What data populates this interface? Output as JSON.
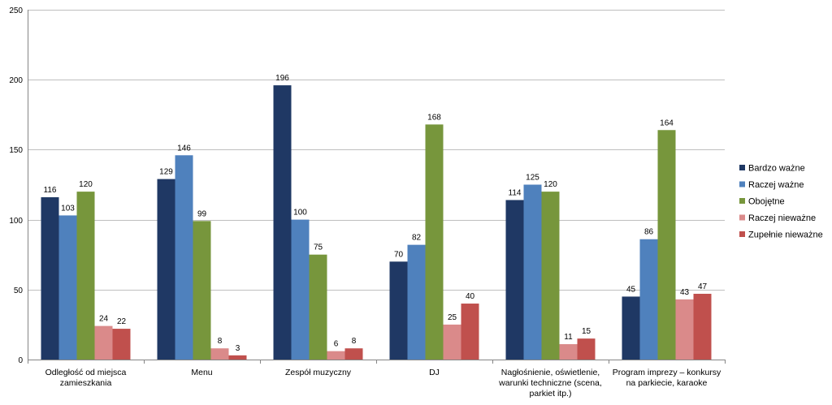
{
  "chart_data": {
    "type": "bar",
    "title": "",
    "xlabel": "",
    "ylabel": "",
    "ylim": [
      0,
      250
    ],
    "yticks": [
      0,
      50,
      100,
      150,
      200,
      250
    ],
    "grid": true,
    "legend_position": "right",
    "categories": [
      [
        "Odległość od miejsca",
        "zamieszkania"
      ],
      [
        "Menu"
      ],
      [
        "Zespół muzyczny"
      ],
      [
        "DJ"
      ],
      [
        "Nagłośnienie, oświetlenie,",
        "warunki techniczne (scena,",
        "parkiet itp.)"
      ],
      [
        "Program imprezy – konkursy",
        "na parkiecie, karaoke"
      ]
    ],
    "series": [
      {
        "name": "Bardzo ważne",
        "color": "#1F3864",
        "values": [
          116,
          129,
          196,
          70,
          114,
          45
        ]
      },
      {
        "name": "Raczej ważne",
        "color": "#4F81BD",
        "values": [
          103,
          146,
          100,
          82,
          125,
          86
        ]
      },
      {
        "name": "Obojętne",
        "color": "#77963C",
        "values": [
          120,
          99,
          75,
          168,
          120,
          164
        ]
      },
      {
        "name": "Raczej nieważne",
        "color": "#DA8A8A",
        "values": [
          24,
          8,
          6,
          25,
          11,
          43
        ]
      },
      {
        "name": "Zupełnie nieważne",
        "color": "#C0504D",
        "values": [
          22,
          3,
          8,
          40,
          15,
          47
        ]
      }
    ]
  }
}
